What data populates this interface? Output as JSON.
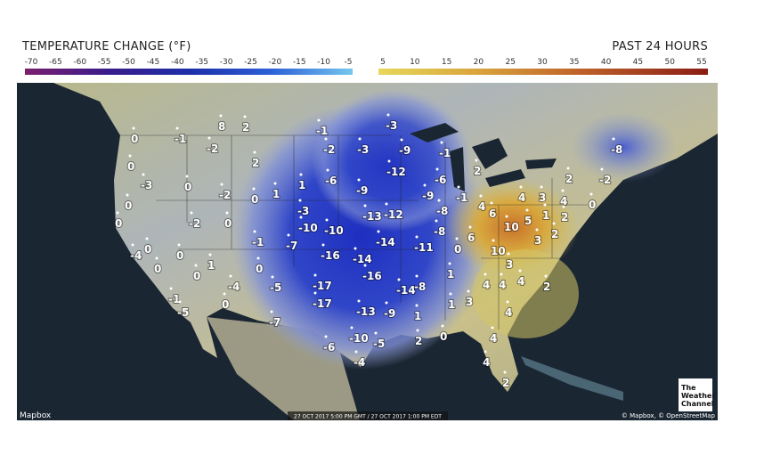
{
  "header": {
    "title": "TEMPERATURE CHANGE (°F)",
    "period": "PAST 24 HOURS"
  },
  "scale": {
    "cold_ticks": [
      -70,
      -65,
      -60,
      -55,
      -50,
      -45,
      -40,
      -35,
      -30,
      -25,
      -20,
      -15,
      -10,
      -5
    ],
    "warm_ticks": [
      5,
      10,
      15,
      20,
      25,
      30,
      35,
      40,
      45,
      50,
      55
    ]
  },
  "stations": [
    0,
    -1,
    8,
    2,
    -2,
    0,
    2,
    -3,
    0,
    -2,
    0,
    1,
    1,
    0,
    0,
    -2,
    0,
    0,
    -4,
    0,
    0,
    1,
    0,
    -1,
    0,
    -4,
    0,
    -1,
    -5,
    -5,
    -7,
    -7,
    -3,
    -10,
    -10,
    -1,
    -2,
    -6,
    -3,
    -3,
    -9,
    -9,
    -12,
    -13,
    -12,
    -14,
    -16,
    -14,
    -16,
    -17,
    -17,
    -13,
    -9,
    -14,
    -8,
    -11,
    -9,
    -6,
    -1,
    -8,
    -8,
    -1,
    2,
    6,
    10,
    4,
    4,
    3,
    5,
    1,
    2,
    4,
    2,
    2,
    3,
    -2,
    0,
    -8,
    0,
    6,
    10,
    3,
    4,
    4,
    4,
    2,
    1,
    1,
    3,
    4,
    1,
    2,
    0,
    -6,
    -10,
    -5,
    -4,
    4,
    4,
    2
  ],
  "footer": {
    "provider": "Mapbox",
    "timestamp": "27 OCT 2017 5:00 PM GMT / 27 OCT 2017 1:00 PM EDT",
    "attribution": "© Mapbox, © OpenStreetMap",
    "logo": [
      "The",
      "Weather",
      "Channel"
    ]
  }
}
